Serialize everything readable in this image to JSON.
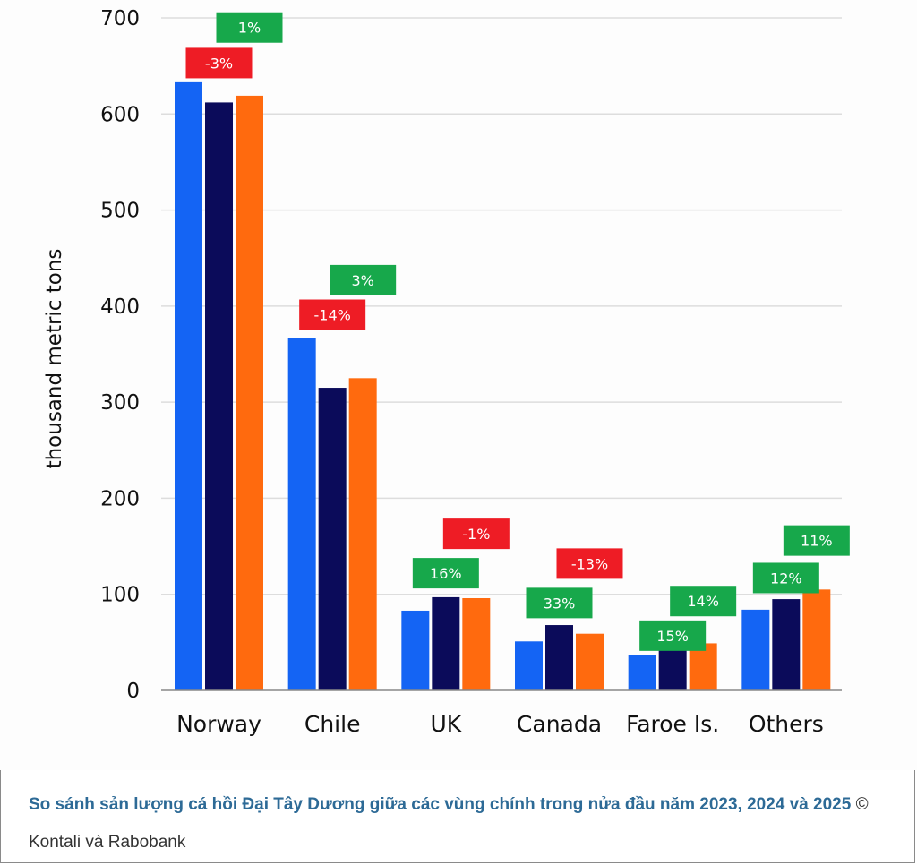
{
  "chart_data": {
    "type": "bar",
    "title": "",
    "xlabel": "",
    "ylabel": "thousand metric tons",
    "ylim": [
      0,
      700
    ],
    "yticks": [
      0,
      100,
      200,
      300,
      400,
      500,
      600,
      700
    ],
    "grid": true,
    "categories": [
      "Norway",
      "Chile",
      "UK",
      "Canada",
      "Faroe Is.",
      "Others"
    ],
    "series": [
      {
        "name": "H1 2023",
        "color": "#1464f4",
        "values": [
          633,
          367,
          83,
          51,
          37,
          84
        ]
      },
      {
        "name": "H1 2024",
        "color": "#0b0b5a",
        "values": [
          612,
          315,
          97,
          68,
          43,
          95
        ]
      },
      {
        "name": "H1 2025",
        "color": "#ff6a0e",
        "values": [
          619,
          325,
          96,
          59,
          49,
          105
        ]
      }
    ],
    "annotations": [
      {
        "category": "Norway",
        "series": "H1 2024",
        "label": "-3%",
        "color": "#ee1c25",
        "level": 653
      },
      {
        "category": "Norway",
        "series": "H1 2025",
        "label": "1%",
        "color": "#17a84b",
        "level": 690
      },
      {
        "category": "Chile",
        "series": "H1 2024",
        "label": "-14%",
        "color": "#ee1c25",
        "level": 391
      },
      {
        "category": "Chile",
        "series": "H1 2025",
        "label": "3%",
        "color": "#17a84b",
        "level": 427
      },
      {
        "category": "UK",
        "series": "H1 2024",
        "label": "16%",
        "color": "#17a84b",
        "level": 122
      },
      {
        "category": "UK",
        "series": "H1 2025",
        "label": "-1%",
        "color": "#ee1c25",
        "level": 163
      },
      {
        "category": "Canada",
        "series": "H1 2024",
        "label": "33%",
        "color": "#17a84b",
        "level": 91
      },
      {
        "category": "Canada",
        "series": "H1 2025",
        "label": "-13%",
        "color": "#ee1c25",
        "level": 132
      },
      {
        "category": "Faroe Is.",
        "series": "H1 2024",
        "label": "15%",
        "color": "#17a84b",
        "level": 57
      },
      {
        "category": "Faroe Is.",
        "series": "H1 2025",
        "label": "14%",
        "color": "#17a84b",
        "level": 93
      },
      {
        "category": "Others",
        "series": "H1 2024",
        "label": "12%",
        "color": "#17a84b",
        "level": 117
      },
      {
        "category": "Others",
        "series": "H1 2025",
        "label": "11%",
        "color": "#17a84b",
        "level": 156
      }
    ]
  },
  "caption": {
    "text": "So sánh sản lượng cá hồi Đại Tây Dương giữa các vùng chính trong nửa đầu năm 2023, 2024 và 2025",
    "credit": " © Kontali và Rabobank"
  }
}
